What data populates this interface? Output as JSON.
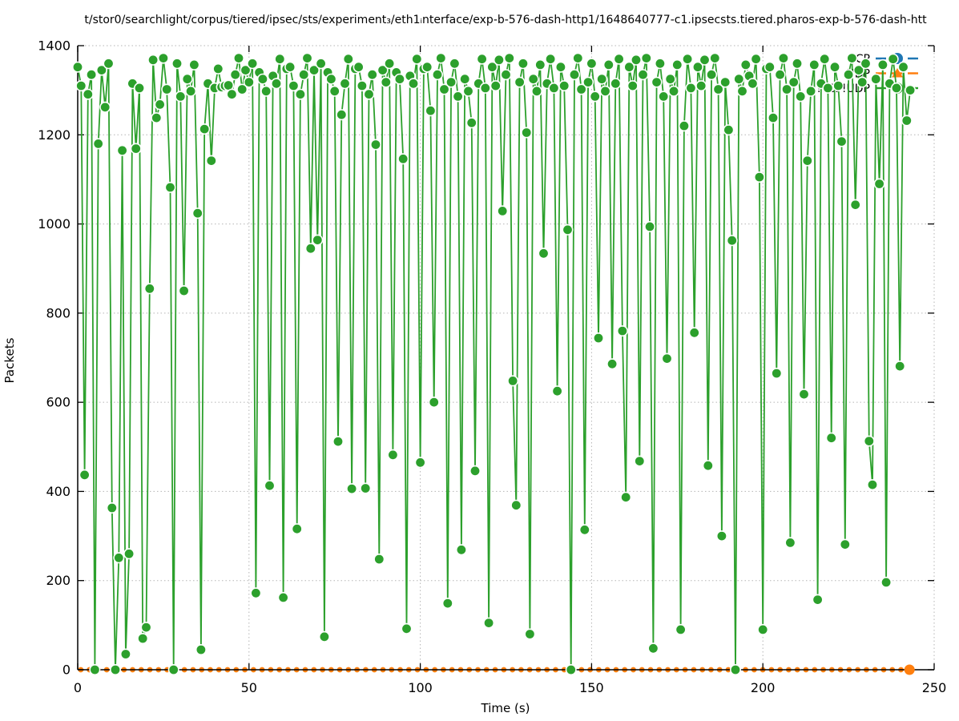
{
  "chart_data": {
    "type": "line",
    "title": "t/stor0/searchlight/corpus/tiered/ipsec/sts/experiment₃/eth1ᵢnterface/exp-b-576-dash-http1/1648640777-c1.ipsecsts.tiered.pharos-exp-b-576-dash-htt",
    "xlabel": "Time (s)",
    "ylabel": "Packets",
    "xlim": [
      0,
      250
    ],
    "ylim": [
      0,
      1400
    ],
    "x_ticks": [
      0,
      50,
      100,
      150,
      200,
      250
    ],
    "y_ticks": [
      0,
      200,
      400,
      600,
      800,
      1000,
      1200,
      1400
    ],
    "grid": true,
    "grid_style": "dotted",
    "legend_position": "top-right",
    "background_color": "#ffffff",
    "series": [
      {
        "name": "TCP",
        "color": "#1f77b4",
        "marker": "circle",
        "line_style": "dashed",
        "values": []
      },
      {
        "name": "UDP",
        "color": "#ff7f0e",
        "marker": "triangle",
        "line_style": "dashed",
        "t_start": 0.9,
        "t_step": 2.52,
        "t_end": 242.8,
        "constant_value": 0
      },
      {
        "name": "!TCP!UDP",
        "color": "#2ca02c",
        "marker": "circle",
        "line_style": "solid",
        "t_start": 0,
        "t_step": 1,
        "values": [
          1352,
          1310,
          437,
          1291,
          1335,
          0,
          1180,
          1345,
          1262,
          1360,
          363,
          0,
          251,
          1165,
          35,
          260,
          1315,
          1169,
          1305,
          70,
          95,
          855,
          1368,
          1238,
          1268,
          1372,
          1302,
          1082,
          0,
          1360,
          1286,
          850,
          1325,
          1298,
          1357,
          1024,
          45,
          1213,
          1315,
          1142,
          1305,
          1348,
          1307,
          1310,
          1311,
          1291,
          1335,
          1372,
          1302,
          1345,
          1318,
          1360,
          172,
          1340,
          1325,
          1298,
          413,
          1332,
          1315,
          1370,
          162,
          1348,
          1352,
          1310,
          316,
          1291,
          1335,
          1372,
          945,
          1345,
          964,
          1360,
          74,
          1340,
          1325,
          1298,
          512,
          1245,
          1315,
          1370,
          406,
          1348,
          1352,
          1310,
          407,
          1291,
          1335,
          1178,
          248,
          1345,
          1318,
          1360,
          482,
          1340,
          1325,
          1146,
          92,
          1332,
          1315,
          1370,
          465,
          1348,
          1352,
          1254,
          600,
          1335,
          1372,
          1302,
          149,
          1318,
          1360,
          1286,
          269,
          1325,
          1298,
          1227,
          446,
          1315,
          1370,
          1305,
          105,
          1352,
          1310,
          1368,
          1029,
          1335,
          1372,
          648,
          369,
          1318,
          1360,
          1205,
          80,
          1325,
          1298,
          1357,
          934,
          1315,
          1370,
          1305,
          625,
          1352,
          1310,
          987,
          0,
          1335,
          1372,
          1302,
          314,
          1318,
          1360,
          1286,
          744,
          1325,
          1298,
          1357,
          686,
          1315,
          1370,
          760,
          387,
          1352,
          1310,
          1368,
          468,
          1335,
          1372,
          994,
          48,
          1318,
          1360,
          1286,
          698,
          1325,
          1298,
          1357,
          90,
          1220,
          1370,
          1305,
          756,
          1352,
          1310,
          1368,
          458,
          1335,
          1372,
          1302,
          300,
          1318,
          1211,
          963,
          0,
          1325,
          1298,
          1357,
          1332,
          1315,
          1370,
          1105,
          90,
          1348,
          1352,
          1238,
          665,
          1335,
          1372,
          1302,
          285,
          1318,
          1360,
          1286,
          618,
          1142,
          1298,
          1357,
          157,
          1315,
          1370,
          1305,
          520,
          1352,
          1310,
          1185,
          281,
          1335,
          1372,
          1043,
          1345,
          1318,
          1360,
          513,
          415,
          1325,
          1090,
          1357,
          196,
          1315,
          1370,
          1305,
          681,
          1352,
          1232,
          1300
        ]
      }
    ]
  }
}
